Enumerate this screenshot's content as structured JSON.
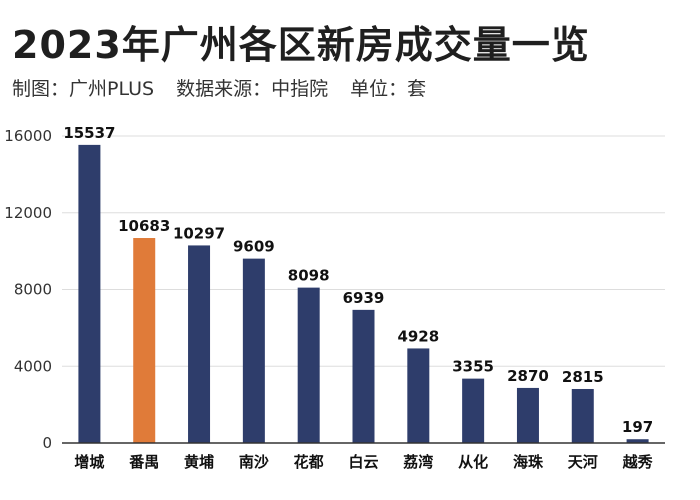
{
  "header": {
    "title": "2023年广州各区新房成交量一览",
    "credits": [
      "制图：广州PLUS",
      "数据来源：中指院",
      "单位：套"
    ]
  },
  "colors": {
    "bar": "#2e3d6b",
    "highlight": "#e07b39",
    "grid": "#dddddd",
    "axis": "#333333"
  },
  "chart_data": {
    "type": "bar",
    "title": "2023年广州各区新房成交量一览",
    "xlabel": "",
    "ylabel": "",
    "unit": "套",
    "ylim": [
      0,
      16000
    ],
    "yticks": [
      0,
      4000,
      8000,
      12000,
      16000
    ],
    "grid": true,
    "highlight_category": "番禺",
    "categories": [
      "增城",
      "番禺",
      "黄埔",
      "南沙",
      "花都",
      "白云",
      "荔湾",
      "从化",
      "海珠",
      "天河",
      "越秀"
    ],
    "values": [
      15537,
      10683,
      10297,
      9609,
      8098,
      6939,
      4928,
      3355,
      2870,
      2815,
      197
    ]
  }
}
